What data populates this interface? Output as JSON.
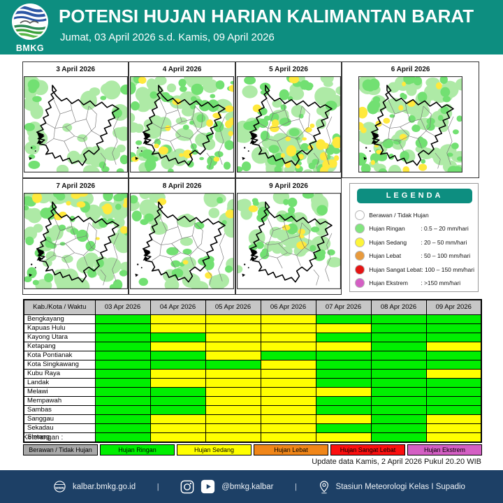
{
  "theme": {
    "teal": "#0d8e80",
    "navy": "#1d4066"
  },
  "header": {
    "logo_text": "BMKG",
    "title": "POTENSI HUJAN HARIAN KALIMANTAN BARAT",
    "subtitle": "Jumat, 03 April 2026 s.d. Kamis, 09 April 2026"
  },
  "maps": {
    "colors": {
      "light_green": "#aeeaa6",
      "green": "#72e072",
      "yellow": "#ffe93d"
    },
    "days": [
      {
        "label": "3 April 2026",
        "seed": 11,
        "light": 30,
        "green": 14,
        "yellow": 0,
        "green_focus": "edges",
        "yellow_focus": "all"
      },
      {
        "label": "4 April 2026",
        "seed": 22,
        "light": 48,
        "green": 46,
        "yellow": 16,
        "green_focus": "all",
        "yellow_focus": "centerEast"
      },
      {
        "label": "5 April 2026",
        "seed": 33,
        "light": 48,
        "green": 44,
        "yellow": 24,
        "green_focus": "all",
        "yellow_focus": "southEast"
      },
      {
        "label": "6 April 2026",
        "seed": 44,
        "light": 48,
        "green": 46,
        "yellow": 15,
        "green_focus": "all",
        "yellow_focus": "westCenter"
      },
      {
        "label": "7 April 2026",
        "seed": 55,
        "light": 46,
        "green": 40,
        "yellow": 13,
        "green_focus": "all",
        "yellow_focus": "northEast"
      },
      {
        "label": "8 April 2026",
        "seed": 66,
        "light": 30,
        "green": 18,
        "yellow": 4,
        "green_focus": "southEdges",
        "yellow_focus": "south"
      },
      {
        "label": "9 April 2026",
        "seed": 77,
        "light": 34,
        "green": 22,
        "yellow": 5,
        "green_focus": "centerNorth",
        "yellow_focus": "center"
      }
    ]
  },
  "legend": {
    "title": "LEGENDA",
    "items": [
      {
        "label": "Berawan / Tidak Hujan",
        "range": "",
        "color": "#ffffff"
      },
      {
        "label": "Hujan Ringan",
        "range": ": 0.5 – 20 mm/hari",
        "color": "#82e57f"
      },
      {
        "label": "Hujan Sedang",
        "range": ": 20 – 50 mm/hari",
        "color": "#fdf53a"
      },
      {
        "label": "Hujan Lebat",
        "range": ": 50 – 100 mm/hari",
        "color": "#e89a3c"
      },
      {
        "label": "Hujan Sangat Lebat",
        "range": ": 100 – 150 mm/hari",
        "color": "#e51414"
      },
      {
        "label": "Hujan Ekstrem",
        "range": ": >150 mm/hari",
        "color": "#d45fc4"
      }
    ]
  },
  "table": {
    "columns": [
      "Kab./Kota / Waktu",
      "03 Apr 2026",
      "04 Apr 2026",
      "05 Apr 2026",
      "06 Apr 2026",
      "07 Apr 2026",
      "08 Apr 2026",
      "09 Apr 2026"
    ],
    "category_colors": {
      "ringan": "#00ef00",
      "sedang": "#ffff00"
    },
    "rows": [
      {
        "name": "Bengkayang",
        "cells": [
          "ringan",
          "sedang",
          "sedang",
          "sedang",
          "ringan",
          "ringan",
          "ringan"
        ]
      },
      {
        "name": "Kapuas Hulu",
        "cells": [
          "ringan",
          "sedang",
          "sedang",
          "sedang",
          "sedang",
          "ringan",
          "ringan"
        ]
      },
      {
        "name": "Kayong Utara",
        "cells": [
          "ringan",
          "ringan",
          "sedang",
          "sedang",
          "ringan",
          "ringan",
          "ringan"
        ]
      },
      {
        "name": "Ketapang",
        "cells": [
          "ringan",
          "sedang",
          "sedang",
          "sedang",
          "sedang",
          "ringan",
          "sedang"
        ]
      },
      {
        "name": "Kota Pontianak",
        "cells": [
          "ringan",
          "ringan",
          "sedang",
          "ringan",
          "ringan",
          "ringan",
          "ringan"
        ]
      },
      {
        "name": "Kota Singkawang",
        "cells": [
          "ringan",
          "ringan",
          "ringan",
          "sedang",
          "ringan",
          "ringan",
          "ringan"
        ]
      },
      {
        "name": "Kubu Raya",
        "cells": [
          "ringan",
          "sedang",
          "sedang",
          "sedang",
          "ringan",
          "ringan",
          "sedang"
        ]
      },
      {
        "name": "Landak",
        "cells": [
          "ringan",
          "sedang",
          "sedang",
          "sedang",
          "ringan",
          "ringan",
          "ringan"
        ]
      },
      {
        "name": "Melawi",
        "cells": [
          "ringan",
          "ringan",
          "sedang",
          "sedang",
          "sedang",
          "ringan",
          "ringan"
        ]
      },
      {
        "name": "Mempawah",
        "cells": [
          "ringan",
          "ringan",
          "sedang",
          "sedang",
          "ringan",
          "ringan",
          "ringan"
        ]
      },
      {
        "name": "Sambas",
        "cells": [
          "ringan",
          "ringan",
          "sedang",
          "sedang",
          "ringan",
          "ringan",
          "ringan"
        ]
      },
      {
        "name": "Sanggau",
        "cells": [
          "ringan",
          "sedang",
          "sedang",
          "sedang",
          "sedang",
          "ringan",
          "sedang"
        ]
      },
      {
        "name": "Sekadau",
        "cells": [
          "ringan",
          "sedang",
          "sedang",
          "sedang",
          "ringan",
          "ringan",
          "sedang"
        ]
      },
      {
        "name": "Sintang",
        "cells": [
          "ringan",
          "sedang",
          "sedang",
          "sedang",
          "sedang",
          "ringan",
          "sedang"
        ]
      }
    ]
  },
  "keterangan": {
    "label": "Keterangan :",
    "items": [
      {
        "label": "Berawan / Tidak Hujan",
        "color": "#a8a8a8"
      },
      {
        "label": "Hujan Ringan",
        "color": "#00ef00"
      },
      {
        "label": "Hujan Sedang",
        "color": "#ffff00"
      },
      {
        "label": "Hujan Lebat",
        "color": "#f08619"
      },
      {
        "label": "Hujan Sangat Lebat",
        "color": "#fb0f0f"
      },
      {
        "label": "Hujan Ekstrem",
        "color": "#d45fc4"
      }
    ]
  },
  "update_text": "Update data Kamis, 2 April 2026 Pukul 20.20 WIB",
  "footer": {
    "website": "kalbar.bmkg.go.id",
    "separator": "|",
    "social_handle": "@bmkg.kalbar",
    "station": "Stasiun Meteorologi Kelas I Supadio"
  }
}
